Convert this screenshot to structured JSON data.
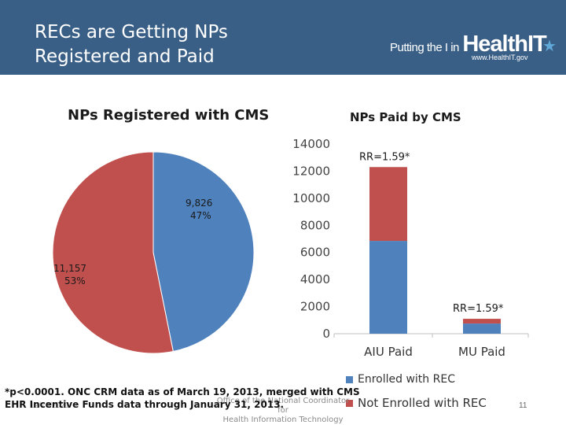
{
  "header": {
    "title_line1": "RECs are Getting NPs",
    "title_line2": "Registered and Paid",
    "logo_tagline": "Putting the I in",
    "logo_brand": "HealthIT",
    "logo_url": "www.HealthIT.gov"
  },
  "colors": {
    "header_bg": "#3a5f86",
    "blue": "#4f81bd",
    "red": "#c0504d"
  },
  "chart_data": [
    {
      "type": "pie",
      "title": "NPs Registered with CMS",
      "slices": [
        {
          "value": 9826,
          "label": "9,826",
          "percent_label": "47%",
          "color": "#4f81bd"
        },
        {
          "value": 11157,
          "label": "11,157",
          "percent_label": "53%",
          "color": "#c0504d"
        }
      ]
    },
    {
      "type": "bar",
      "stacked": true,
      "title": "NPs Paid by CMS",
      "categories": [
        "AIU Paid",
        "MU Paid"
      ],
      "series": [
        {
          "name": "Enrolled with REC",
          "values": [
            6850,
            750
          ],
          "color": "#4f81bd"
        },
        {
          "name": "Not Enrolled with REC",
          "values": [
            5450,
            350
          ],
          "color": "#c0504d"
        }
      ],
      "ylim": [
        0,
        14000
      ],
      "yticks": [
        0,
        2000,
        4000,
        6000,
        8000,
        10000,
        12000,
        14000
      ],
      "ytick_labels": [
        "0",
        "2000",
        "4000",
        "6000",
        "8000",
        "10000",
        "12000",
        "14000"
      ],
      "annotations": [
        "RR=1.59*",
        "RR=1.59*"
      ],
      "grid": false,
      "legend": "bottom"
    }
  ],
  "footnote": {
    "line1": "*p<0.0001. ONC CRM data as of March 19, 2013, merged with CMS",
    "line2": "EHR Incentive Funds data through January 31, 2013."
  },
  "footer": {
    "date": "12/28/2021",
    "org_line1": "Office of the National Coordinator for",
    "org_line2": "Health Information Technology",
    "page": "11"
  }
}
